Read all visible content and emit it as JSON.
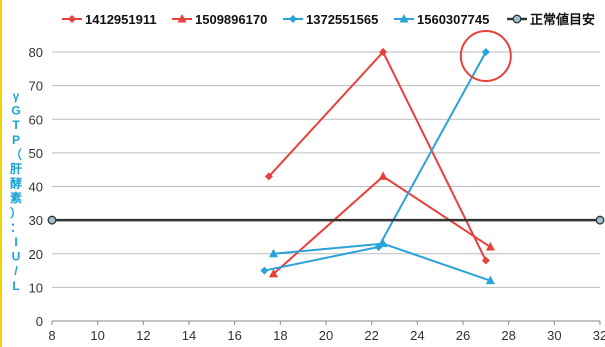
{
  "chart_data": {
    "type": "line",
    "title": "",
    "ylabel": "γGTP（肝酵素）：IU/L",
    "xlabel": "",
    "xlim": [
      8,
      32
    ],
    "ylim": [
      0,
      80
    ],
    "xticks": [
      8,
      10,
      12,
      14,
      16,
      18,
      20,
      22,
      24,
      26,
      28,
      30,
      32
    ],
    "yticks": [
      0,
      10,
      20,
      30,
      40,
      50,
      60,
      70,
      80
    ],
    "grid": "horizontal",
    "legend_position": "top",
    "series": [
      {
        "name": "1412951911",
        "color": "#e8403a",
        "marker": "diamond",
        "points": [
          [
            17.5,
            43
          ],
          [
            22.5,
            80
          ],
          [
            27,
            18
          ]
        ]
      },
      {
        "name": "1509896170",
        "color": "#e8403a",
        "marker": "triangle",
        "points": [
          [
            17.7,
            14
          ],
          [
            22.5,
            43
          ],
          [
            27.2,
            22
          ]
        ]
      },
      {
        "name": "1372551565",
        "color": "#2aa3d8",
        "marker": "diamond",
        "points": [
          [
            17.3,
            15
          ],
          [
            22.3,
            22
          ],
          [
            27,
            80
          ]
        ]
      },
      {
        "name": "1560307745",
        "color": "#2aa3d8",
        "marker": "triangle",
        "points": [
          [
            17.7,
            20
          ],
          [
            22.5,
            23
          ],
          [
            27.2,
            12
          ]
        ]
      },
      {
        "name": "正常値目安",
        "color": "#333333",
        "marker": "circle",
        "points": [
          [
            8,
            30
          ],
          [
            32,
            30
          ]
        ]
      }
    ],
    "annotations": [
      {
        "type": "circle-highlight",
        "color": "#e8403a",
        "at": [
          27,
          80
        ]
      }
    ]
  }
}
